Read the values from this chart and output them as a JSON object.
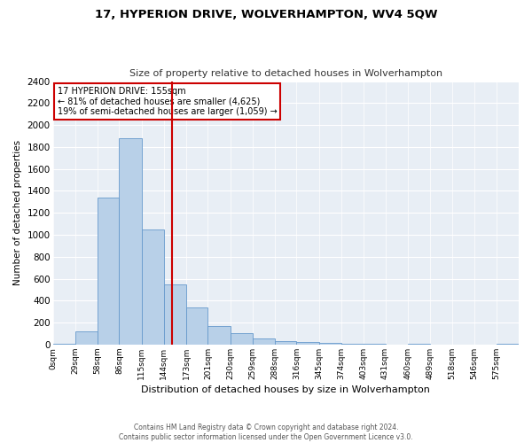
{
  "title": "17, HYPERION DRIVE, WOLVERHAMPTON, WV4 5QW",
  "subtitle": "Size of property relative to detached houses in Wolverhampton",
  "xlabel": "Distribution of detached houses by size in Wolverhampton",
  "ylabel": "Number of detached properties",
  "annotation_line1": "17 HYPERION DRIVE: 155sqm",
  "annotation_line2": "← 81% of detached houses are smaller (4,625)",
  "annotation_line3": "19% of semi-detached houses are larger (1,059) →",
  "property_sqm": 155,
  "bar_color": "#b8d0e8",
  "bar_edge_color": "#6699cc",
  "vline_color": "#cc0000",
  "annotation_box_color": "#cc0000",
  "plot_bg_color": "#e8eef5",
  "fig_bg_color": "#ffffff",
  "grid_color": "#ffffff",
  "footer1": "Contains HM Land Registry data © Crown copyright and database right 2024.",
  "footer2": "Contains public sector information licensed under the Open Government Licence v3.0.",
  "bin_edges": [
    0,
    29,
    58,
    86,
    115,
    144,
    173,
    201,
    230,
    259,
    288,
    316,
    345,
    374,
    403,
    431,
    460,
    489,
    518,
    546,
    575,
    604
  ],
  "bar_heights": [
    5,
    120,
    1340,
    1880,
    1050,
    550,
    340,
    170,
    105,
    55,
    30,
    20,
    15,
    10,
    5,
    2,
    5,
    1,
    1,
    1,
    5
  ],
  "ylim": [
    0,
    2400
  ],
  "yticks": [
    0,
    200,
    400,
    600,
    800,
    1000,
    1200,
    1400,
    1600,
    1800,
    2000,
    2200,
    2400
  ],
  "tick_labels": [
    "0sqm",
    "29sqm",
    "58sqm",
    "86sqm",
    "115sqm",
    "144sqm",
    "173sqm",
    "201sqm",
    "230sqm",
    "259sqm",
    "288sqm",
    "316sqm",
    "345sqm",
    "374sqm",
    "403sqm",
    "431sqm",
    "460sqm",
    "489sqm",
    "518sqm",
    "546sqm",
    "575sqm"
  ]
}
